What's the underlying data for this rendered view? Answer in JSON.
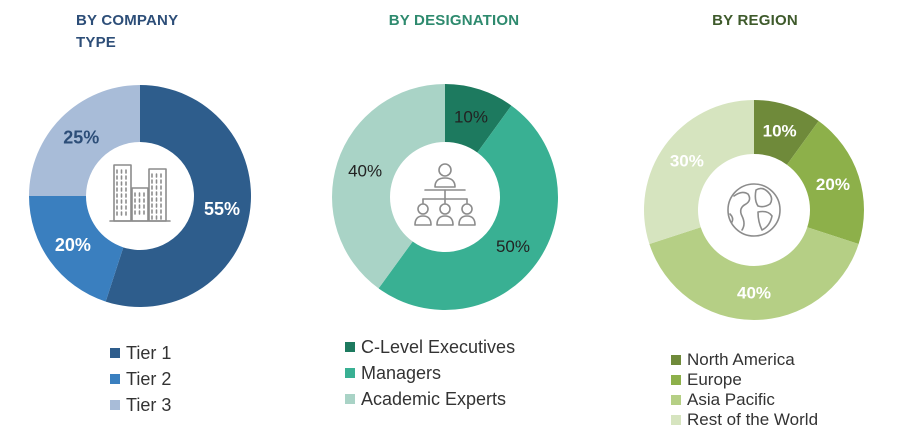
{
  "chart_data": [
    {
      "type": "pie",
      "title": "BY COMPANY TYPE",
      "categories": [
        "Tier 1",
        "Tier 2",
        "Tier 3"
      ],
      "values": [
        55,
        20,
        25
      ],
      "value_labels": [
        "55%",
        "20%",
        "25%"
      ],
      "colors": [
        "#2e5d8c",
        "#3a7fbf",
        "#a8bcd8"
      ],
      "center_icon": "buildings-icon",
      "legend": "bottom"
    },
    {
      "type": "pie",
      "title": "BY DESIGNATION",
      "categories": [
        "C-Level Executives",
        "Managers",
        "Academic Experts"
      ],
      "values": [
        10,
        50,
        40
      ],
      "value_labels": [
        "10%",
        "50%",
        "40%"
      ],
      "colors": [
        "#1d7a5f",
        "#39b093",
        "#a9d3c6"
      ],
      "center_icon": "org-chart-icon",
      "legend": "bottom"
    },
    {
      "type": "pie",
      "title": "BY REGION",
      "categories": [
        "North America",
        "Europe",
        "Asia Pacific",
        "Rest of the World"
      ],
      "values": [
        10,
        20,
        40,
        30
      ],
      "value_labels": [
        "10%",
        "20%",
        "40%",
        "30%"
      ],
      "colors": [
        "#6f8a3a",
        "#8db04a",
        "#b5cf85",
        "#d6e4bf"
      ],
      "center_icon": "globe-icon",
      "legend": "bottom"
    }
  ]
}
